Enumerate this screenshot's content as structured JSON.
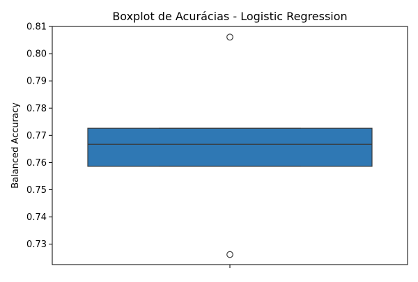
{
  "chart_data": {
    "type": "boxplot",
    "title": "Boxplot de Acurácias - Logistic Regression",
    "xlabel": "",
    "ylabel": "Balanced Accuracy",
    "ylim": [
      0.7225,
      0.81
    ],
    "yticks": [
      0.73,
      0.74,
      0.75,
      0.76,
      0.77,
      0.78,
      0.79,
      0.8,
      0.81
    ],
    "ytick_labels": [
      "0.73",
      "0.74",
      "0.75",
      "0.76",
      "0.77",
      "0.78",
      "0.79",
      "0.80",
      "0.81"
    ],
    "grid": false,
    "box": {
      "q1": 0.7586,
      "median": 0.7667,
      "q3": 0.7726,
      "whisker_low": 0.7586,
      "whisker_high": 0.7726,
      "outliers": [
        0.8061,
        0.7262
      ]
    },
    "colors": {
      "box_fill": "#2f78b4",
      "box_edge": "#3a3a3a",
      "outlier_edge": "#3a3a3a"
    }
  }
}
